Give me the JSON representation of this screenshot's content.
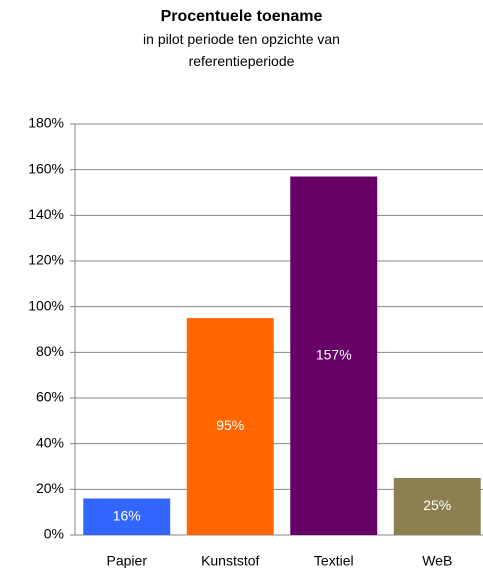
{
  "chart_data": {
    "type": "bar",
    "title": "Procentuele toename",
    "subtitle": "in pilot periode ten opzichte van referentieperiode",
    "categories": [
      "Papier",
      "Kunststof",
      "Textiel",
      "WeB"
    ],
    "values": [
      16,
      95,
      157,
      25
    ],
    "value_labels": [
      "16%",
      "95%",
      "157%",
      "25%"
    ],
    "colors": [
      "#3366ff",
      "#ff6600",
      "#660066",
      "#8c7f50"
    ],
    "ylim": [
      0,
      180
    ],
    "yticks": [
      {
        "value": 0,
        "label": "0%"
      },
      {
        "value": 20,
        "label": "20%"
      },
      {
        "value": 40,
        "label": "40%"
      },
      {
        "value": 60,
        "label": "60%"
      },
      {
        "value": 80,
        "label": "80%"
      },
      {
        "value": 100,
        "label": "100%"
      },
      {
        "value": 120,
        "label": "120%"
      },
      {
        "value": 140,
        "label": "140%"
      },
      {
        "value": 160,
        "label": "160%"
      },
      {
        "value": 180,
        "label": "180%"
      }
    ],
    "grid": true
  }
}
